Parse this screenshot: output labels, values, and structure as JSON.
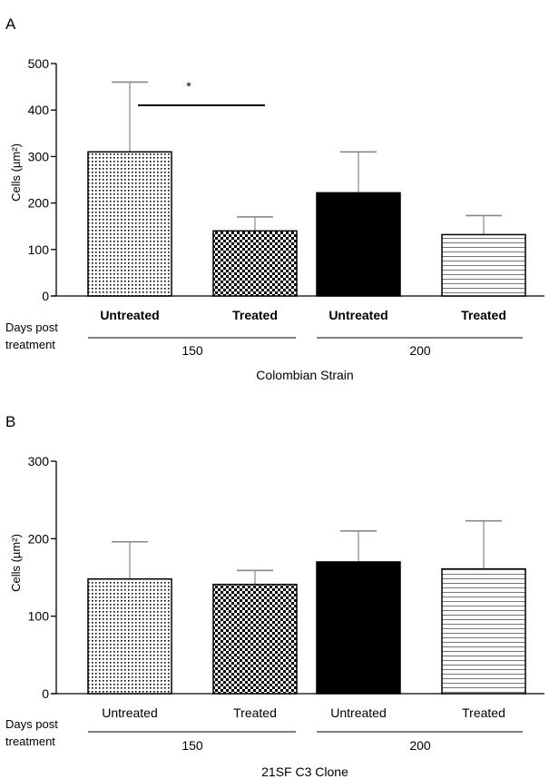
{
  "chart_data": [
    {
      "type": "bar",
      "panel_label": "A",
      "categories": [
        "Untreated",
        "Treated",
        "Untreated",
        "Treated"
      ],
      "values": [
        310,
        140,
        222,
        132
      ],
      "error_upper": [
        460,
        170,
        310,
        173
      ],
      "ylabel": "Cells (µm²)",
      "ylim": [
        0,
        500
      ],
      "yticks": [
        "0",
        "100",
        "200",
        "300",
        "400",
        "500"
      ],
      "row_label": "Days post\ntreatment",
      "groups": [
        {
          "label": "150"
        },
        {
          "label": "200"
        }
      ],
      "xlabel": "Colombian Strain",
      "significance": "*",
      "category_bold": true
    },
    {
      "type": "bar",
      "panel_label": "B",
      "categories": [
        "Untreated",
        "Treated",
        "Untreated",
        "Treated"
      ],
      "values": [
        148,
        141,
        170,
        161
      ],
      "error_upper": [
        196,
        159,
        210,
        223
      ],
      "ylabel": "Cells (µm²)",
      "ylim": [
        0,
        300
      ],
      "yticks": [
        "0",
        "100",
        "200",
        "300"
      ],
      "row_label": "Days post\ntreatment",
      "groups": [
        {
          "label": "150"
        },
        {
          "label": "200"
        }
      ],
      "xlabel": "21SF C3 Clone",
      "category_bold": false
    }
  ],
  "fills": [
    "dots",
    "checker",
    "solid",
    "hlines"
  ],
  "colors": {
    "bar_stroke": "#000000",
    "solid_fill": "#000000",
    "error_bar": "#888888"
  }
}
